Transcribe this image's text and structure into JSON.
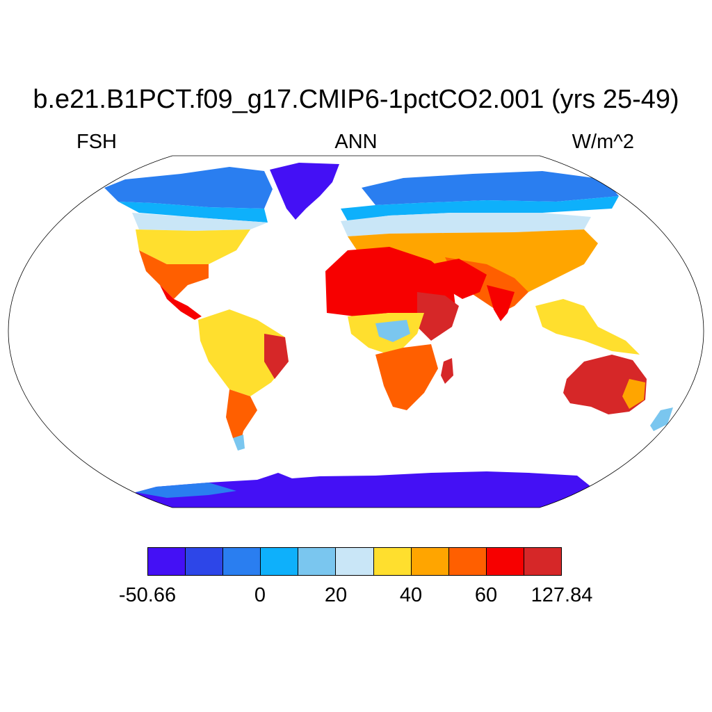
{
  "title": "b.e21.B1PCT.f09_g17.CMIP6-1pctCO2.001 (yrs 25-49)",
  "variable": "FSH",
  "season": "ANN",
  "units": "W/m^2",
  "projection": "Robinson",
  "colorbar": {
    "colors": [
      "#4410f5",
      "#2d46e8",
      "#2a7ef0",
      "#0eb0fb",
      "#7ac6ef",
      "#c9e6f7",
      "#ffdf2e",
      "#ffa500",
      "#ff5f00",
      "#f70000",
      "#d62728"
    ],
    "labels": [
      "-50.66",
      "0",
      "20",
      "40",
      "60",
      "127.84"
    ]
  }
}
